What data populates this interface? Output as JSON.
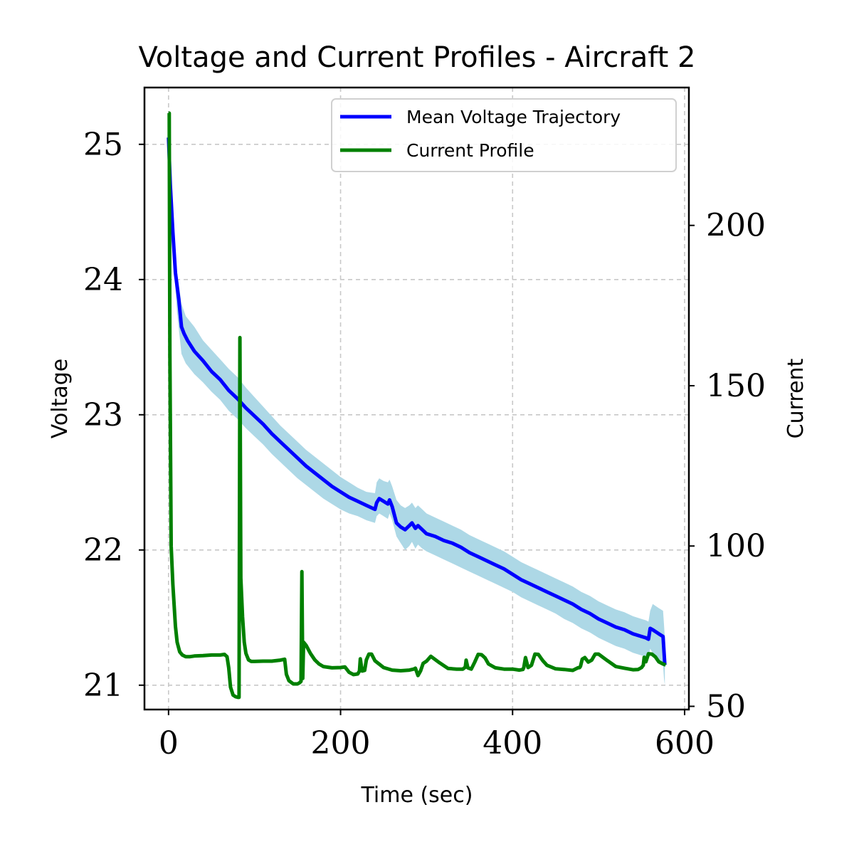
{
  "chart_data": {
    "type": "line",
    "title": "Voltage and Current Profiles - Aircraft 2",
    "xlabel": "Time (sec)",
    "ylabel_left": "Voltage",
    "ylabel_right": "Current",
    "xlim": [
      -28,
      605
    ],
    "ylim_left": [
      20.82,
      25.42
    ],
    "ylim_right": [
      49,
      243
    ],
    "x_ticks": [
      0,
      200,
      400,
      600
    ],
    "x_tick_labels": [
      "0",
      "200",
      "400",
      "600"
    ],
    "y_left_ticks": [
      21,
      22,
      23,
      24,
      25
    ],
    "y_left_tick_labels": [
      "21",
      "22",
      "23",
      "24",
      "25"
    ],
    "y_right_ticks": [
      50,
      100,
      150,
      200
    ],
    "y_right_tick_labels": [
      "50",
      "100",
      "150",
      "200"
    ],
    "grid": true,
    "legend": {
      "placement": "top-right"
    },
    "colors": {
      "voltage": "#0000ff",
      "band": "#add8e6",
      "current": "#008000"
    },
    "series": [
      {
        "name": "Mean Voltage Trajectory",
        "axis": "left",
        "x": [
          0,
          2,
          5,
          8,
          12,
          15,
          18,
          22,
          30,
          40,
          50,
          60,
          70,
          80,
          90,
          100,
          110,
          120,
          130,
          140,
          150,
          160,
          170,
          180,
          190,
          200,
          210,
          220,
          230,
          240,
          242,
          245,
          250,
          255,
          257,
          260,
          265,
          270,
          275,
          280,
          283,
          287,
          290,
          295,
          300,
          310,
          320,
          330,
          340,
          350,
          360,
          370,
          380,
          390,
          400,
          410,
          420,
          430,
          440,
          450,
          460,
          470,
          480,
          490,
          500,
          510,
          520,
          530,
          540,
          550,
          555,
          558,
          560,
          563,
          570,
          575,
          576,
          577
        ],
        "y": [
          25.05,
          24.7,
          24.35,
          24.05,
          23.85,
          23.65,
          23.6,
          23.55,
          23.47,
          23.4,
          23.32,
          23.26,
          23.18,
          23.12,
          23.05,
          22.99,
          22.93,
          22.86,
          22.8,
          22.74,
          22.68,
          22.62,
          22.57,
          22.52,
          22.47,
          22.43,
          22.39,
          22.36,
          22.33,
          22.3,
          22.35,
          22.38,
          22.36,
          22.34,
          22.37,
          22.32,
          22.2,
          22.17,
          22.15,
          22.18,
          22.2,
          22.16,
          22.18,
          22.15,
          22.12,
          22.1,
          22.07,
          22.05,
          22.02,
          21.98,
          21.95,
          21.92,
          21.89,
          21.86,
          21.82,
          21.78,
          21.75,
          21.72,
          21.69,
          21.66,
          21.63,
          21.6,
          21.56,
          21.53,
          21.49,
          21.46,
          21.43,
          21.41,
          21.38,
          21.36,
          21.35,
          21.34,
          21.42,
          21.41,
          21.38,
          21.36,
          21.25,
          21.15
        ]
      },
      {
        "name": "Current Profile",
        "axis": "right",
        "x": [
          0,
          0.8,
          1.5,
          3,
          5,
          8,
          10,
          13,
          16,
          20,
          25,
          30,
          40,
          50,
          60,
          65,
          68,
          70,
          72,
          75,
          78,
          81,
          82,
          83,
          84,
          85,
          86,
          88,
          90,
          93,
          96,
          100,
          110,
          120,
          130,
          135,
          137,
          140,
          145,
          150,
          152,
          153,
          154,
          155,
          156,
          157,
          160,
          165,
          170,
          175,
          180,
          190,
          200,
          205,
          210,
          215,
          220,
          222,
          223,
          225,
          228,
          230,
          233,
          236,
          240,
          250,
          260,
          270,
          280,
          285,
          287,
          290,
          293,
          296,
          300,
          305,
          315,
          325,
          335,
          342,
          345,
          346,
          348,
          352,
          356,
          360,
          364,
          368,
          372,
          380,
          390,
          400,
          408,
          412,
          413,
          415,
          418,
          422,
          426,
          430,
          435,
          440,
          450,
          460,
          470,
          476,
          478,
          479,
          481,
          484,
          488,
          492,
          496,
          500,
          510,
          520,
          530,
          540,
          546,
          550,
          552,
          553,
          555,
          558,
          562,
          566,
          570,
          575,
          578
        ],
        "y": [
          235,
          235,
          160,
          100,
          88,
          75,
          70,
          67,
          66,
          65.5,
          65.5,
          65.7,
          65.8,
          66,
          66,
          66.2,
          65.5,
          62,
          56,
          53.5,
          53,
          52.8,
          52.8,
          165,
          90,
          84,
          78,
          70,
          66.5,
          64.5,
          64,
          64,
          64.1,
          64.1,
          64.4,
          64.7,
          60,
          58,
          57,
          57,
          57.3,
          57.5,
          57.8,
          92,
          58.7,
          70,
          69,
          66.5,
          64.5,
          63.2,
          62.4,
          62,
          62.1,
          62.3,
          60.6,
          59.9,
          60.1,
          61,
          64.8,
          61,
          61.2,
          64.5,
          66.3,
          66.3,
          64.2,
          62.1,
          61.3,
          61.1,
          61.3,
          61.6,
          61.9,
          59.6,
          61,
          63.4,
          64.1,
          65.6,
          63.6,
          61.8,
          61.6,
          61.6,
          62.2,
          64.4,
          62,
          61.6,
          63.8,
          66.2,
          66.1,
          65.1,
          63.2,
          62,
          61.6,
          61.6,
          61.3,
          61.5,
          62.1,
          65.2,
          62.1,
          62.8,
          66.3,
          66.2,
          64.3,
          62.8,
          61.7,
          61.5,
          61.2,
          62,
          62.1,
          62.5,
          64.7,
          65.2,
          63.8,
          64.4,
          66.3,
          66.3,
          64.3,
          62.4,
          61.9,
          61.4,
          61.5,
          62.1,
          62.8,
          65.3,
          63.9,
          66.4,
          66.3,
          65.4,
          63.9,
          63.2,
          62.9
        ]
      }
    ],
    "band": {
      "axis": "left",
      "x": [
        0,
        3,
        6,
        10,
        15,
        20,
        30,
        40,
        50,
        60,
        70,
        80,
        90,
        100,
        110,
        120,
        130,
        140,
        150,
        160,
        170,
        180,
        190,
        200,
        210,
        220,
        230,
        240,
        242,
        245,
        250,
        255,
        257,
        260,
        265,
        270,
        275,
        280,
        283,
        287,
        290,
        295,
        300,
        310,
        320,
        330,
        340,
        350,
        360,
        370,
        380,
        390,
        400,
        410,
        420,
        430,
        440,
        450,
        460,
        470,
        480,
        490,
        500,
        510,
        520,
        530,
        540,
        550,
        555,
        558,
        560,
        563,
        570,
        575,
        576,
        577
      ],
      "upper": [
        25.15,
        24.85,
        24.4,
        24.05,
        23.82,
        23.73,
        23.65,
        23.55,
        23.48,
        23.41,
        23.34,
        23.28,
        23.2,
        23.13,
        23.06,
        22.99,
        22.92,
        22.86,
        22.8,
        22.74,
        22.69,
        22.64,
        22.59,
        22.54,
        22.5,
        22.46,
        22.43,
        22.42,
        22.5,
        22.53,
        22.51,
        22.5,
        22.52,
        22.47,
        22.37,
        22.33,
        22.31,
        22.33,
        22.35,
        22.31,
        22.33,
        22.3,
        22.27,
        22.24,
        22.21,
        22.18,
        22.15,
        22.11,
        22.08,
        22.05,
        22.02,
        21.99,
        21.95,
        21.91,
        21.88,
        21.85,
        21.82,
        21.79,
        21.76,
        21.73,
        21.69,
        21.66,
        21.62,
        21.59,
        21.56,
        21.54,
        21.51,
        21.49,
        21.48,
        21.47,
        21.55,
        21.6,
        21.57,
        21.55,
        21.45,
        21.35
      ],
      "lower": [
        24.95,
        24.55,
        24.1,
        23.75,
        23.45,
        23.38,
        23.3,
        23.24,
        23.17,
        23.11,
        23.03,
        22.97,
        22.9,
        22.84,
        22.78,
        22.71,
        22.65,
        22.59,
        22.53,
        22.48,
        22.43,
        22.38,
        22.34,
        22.3,
        22.27,
        22.25,
        22.22,
        22.2,
        22.25,
        22.27,
        22.25,
        22.23,
        22.27,
        22.22,
        22.1,
        22.05,
        22.0,
        22.03,
        22.06,
        22.01,
        22.04,
        22.01,
        21.99,
        21.96,
        21.93,
        21.9,
        21.87,
        21.84,
        21.81,
        21.78,
        21.75,
        21.72,
        21.69,
        21.65,
        21.62,
        21.59,
        21.56,
        21.53,
        21.49,
        21.46,
        21.42,
        21.39,
        21.35,
        21.32,
        21.29,
        21.27,
        21.24,
        21.22,
        21.21,
        21.2,
        21.27,
        21.24,
        21.19,
        21.15,
        21.05,
        21.0
      ]
    }
  }
}
